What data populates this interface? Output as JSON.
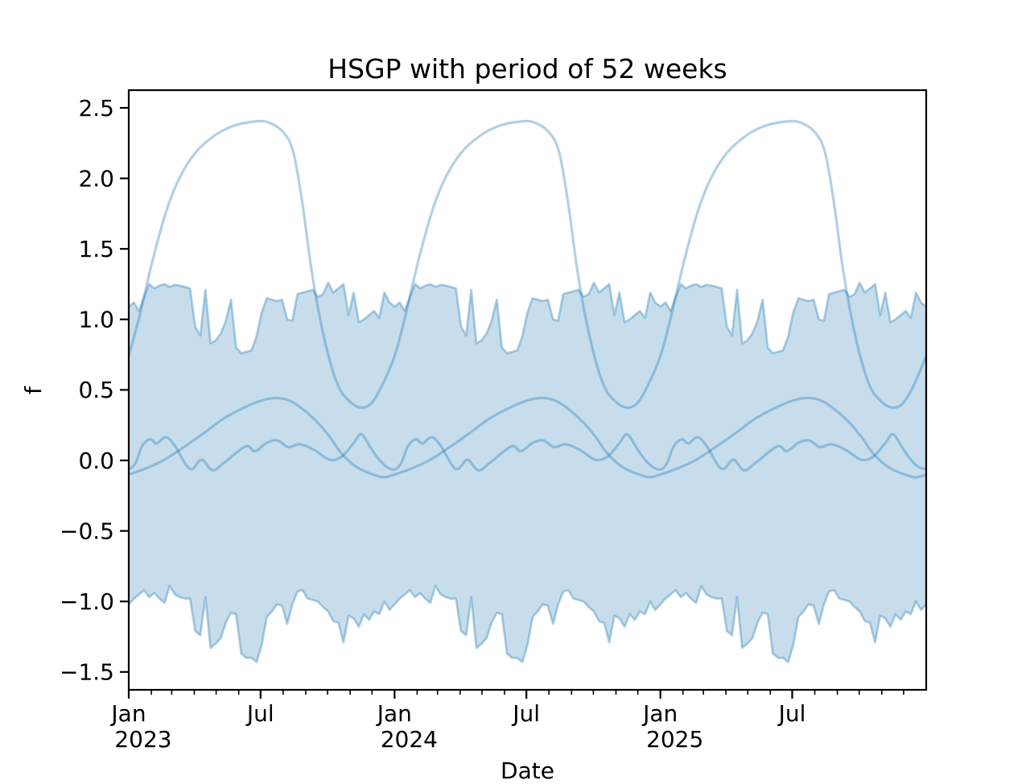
{
  "chart_data": {
    "type": "area",
    "title": "HSGP with period of 52 weeks",
    "xlabel": "Date",
    "ylabel": "f",
    "period_weeks": 52,
    "grid": false,
    "legend": "none",
    "plot_bg": "#ffffff",
    "colors": {
      "accent": "#1f77b4",
      "band_fill": "rgba(31,119,180,0.25)",
      "band_edge": "rgba(31,119,180,0.35)",
      "sample_line": "rgba(31,119,180,0.35)",
      "axis": "#000000"
    },
    "x_axis": {
      "unit": "years since 2023-01-01",
      "range": [
        0,
        3
      ],
      "minor_ticks": "monthly"
    },
    "ylim": [
      -1.63,
      2.63
    ],
    "yticks": [
      {
        "value": 2.5,
        "label": "2.5"
      },
      {
        "value": 2.0,
        "label": "2.0"
      },
      {
        "value": 1.5,
        "label": "1.5"
      },
      {
        "value": 1.0,
        "label": "1.0"
      },
      {
        "value": 0.5,
        "label": "0.5"
      },
      {
        "value": 0.0,
        "label": "0.0"
      },
      {
        "value": -0.5,
        "label": "−0.5"
      },
      {
        "value": -1.0,
        "label": "−1.0"
      },
      {
        "value": -1.5,
        "label": "−1.5"
      }
    ],
    "xticks": [
      {
        "t": 0.0,
        "line1": "Jan",
        "line2": "2023"
      },
      {
        "t": 0.4959,
        "line1": "Jul",
        "line2": ""
      },
      {
        "t": 1.0,
        "line1": "Jan",
        "line2": "2024"
      },
      {
        "t": 1.4959,
        "line1": "Jul",
        "line2": ""
      },
      {
        "t": 2.0,
        "line1": "Jan",
        "line2": "2025"
      },
      {
        "t": 2.4959,
        "line1": "Jul",
        "line2": ""
      }
    ],
    "band": {
      "name": "credible-interval",
      "weeks_per_year": 52,
      "years": 3,
      "upper": [
        1.09,
        1.12,
        1.06,
        1.16,
        1.25,
        1.22,
        1.24,
        1.25,
        1.23,
        1.245,
        1.24,
        1.23,
        1.22,
        0.95,
        0.885,
        1.21,
        0.83,
        0.85,
        0.9,
        0.99,
        1.14,
        0.8,
        0.76,
        0.77,
        0.78,
        0.88,
        1.05,
        1.15,
        1.14,
        1.13,
        1.14,
        1.0,
        0.99,
        1.18,
        1.19,
        1.2,
        1.21,
        1.16,
        1.18,
        1.26,
        1.19,
        1.22,
        1.25,
        1.03,
        1.19,
        0.98,
        1.0,
        1.03,
        1.06,
        1.01,
        1.19,
        1.12
      ],
      "lower": [
        -1.02,
        -0.98,
        -0.95,
        -0.92,
        -0.97,
        -0.94,
        -0.98,
        -1.01,
        -0.89,
        -0.95,
        -0.97,
        -0.98,
        -0.98,
        -1.21,
        -1.24,
        -0.97,
        -1.33,
        -1.3,
        -1.26,
        -1.15,
        -1.08,
        -1.09,
        -1.37,
        -1.4,
        -1.4,
        -1.43,
        -1.31,
        -1.11,
        -1.07,
        -1.02,
        -1.03,
        -1.16,
        -1.02,
        -0.93,
        -0.92,
        -0.98,
        -0.99,
        -1.0,
        -1.04,
        -1.07,
        -1.14,
        -1.15,
        -1.29,
        -1.1,
        -1.12,
        -1.18,
        -1.09,
        -1.13,
        -1.07,
        -1.09,
        -1.0,
        -1.06
      ]
    },
    "series": [
      {
        "name": "gp-sample-large",
        "period_years": 1,
        "points": [
          [
            0,
            0.74
          ],
          [
            0.04,
            1.02
          ],
          [
            0.09,
            1.42
          ],
          [
            0.14,
            1.76
          ],
          [
            0.19,
            2.0
          ],
          [
            0.25,
            2.18
          ],
          [
            0.32,
            2.3
          ],
          [
            0.39,
            2.37
          ],
          [
            0.46,
            2.4
          ],
          [
            0.52,
            2.4
          ],
          [
            0.58,
            2.33
          ],
          [
            0.62,
            2.18
          ],
          [
            0.655,
            1.8
          ],
          [
            0.685,
            1.38
          ],
          [
            0.715,
            1.05
          ],
          [
            0.75,
            0.75
          ],
          [
            0.79,
            0.52
          ],
          [
            0.83,
            0.42
          ],
          [
            0.87,
            0.375
          ],
          [
            0.91,
            0.4
          ],
          [
            0.95,
            0.52
          ],
          [
            1,
            0.74
          ]
        ]
      },
      {
        "name": "gp-sample-medium",
        "period_years": 1,
        "points": [
          [
            0,
            -0.1
          ],
          [
            0.06,
            -0.06
          ],
          [
            0.13,
            0.0
          ],
          [
            0.2,
            0.085
          ],
          [
            0.28,
            0.19
          ],
          [
            0.36,
            0.3
          ],
          [
            0.44,
            0.38
          ],
          [
            0.5,
            0.425
          ],
          [
            0.555,
            0.443
          ],
          [
            0.61,
            0.42
          ],
          [
            0.66,
            0.355
          ],
          [
            0.71,
            0.27
          ],
          [
            0.755,
            0.17
          ],
          [
            0.8,
            0.05
          ],
          [
            0.845,
            -0.03
          ],
          [
            0.88,
            -0.07
          ],
          [
            0.92,
            -0.1
          ],
          [
            0.96,
            -0.12
          ],
          [
            1,
            -0.1
          ]
        ]
      },
      {
        "name": "gp-sample-wiggly",
        "period_years": 1,
        "points": [
          [
            0,
            -0.065
          ],
          [
            0.025,
            -0.02
          ],
          [
            0.05,
            0.1
          ],
          [
            0.08,
            0.15
          ],
          [
            0.105,
            0.12
          ],
          [
            0.14,
            0.165
          ],
          [
            0.175,
            0.1
          ],
          [
            0.215,
            -0.03
          ],
          [
            0.24,
            -0.06
          ],
          [
            0.275,
            0.005
          ],
          [
            0.315,
            -0.07
          ],
          [
            0.36,
            -0.015
          ],
          [
            0.44,
            0.1
          ],
          [
            0.475,
            0.065
          ],
          [
            0.52,
            0.125
          ],
          [
            0.56,
            0.142
          ],
          [
            0.6,
            0.095
          ],
          [
            0.645,
            0.115
          ],
          [
            0.7,
            0.072
          ],
          [
            0.755,
            0.005
          ],
          [
            0.8,
            0.025
          ],
          [
            0.845,
            0.12
          ],
          [
            0.875,
            0.185
          ],
          [
            0.91,
            0.09
          ],
          [
            0.94,
            0.01
          ],
          [
            0.97,
            -0.045
          ],
          [
            1,
            -0.065
          ]
        ]
      }
    ]
  }
}
